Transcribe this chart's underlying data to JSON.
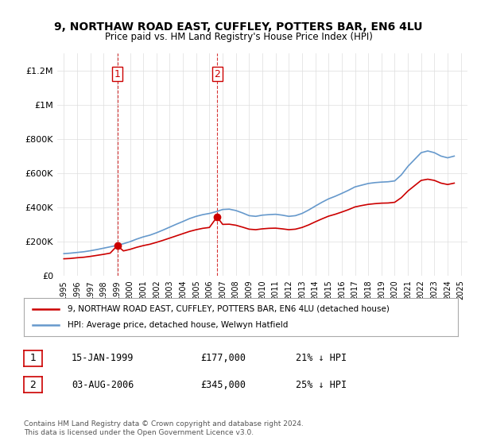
{
  "title1": "9, NORTHAW ROAD EAST, CUFFLEY, POTTERS BAR, EN6 4LU",
  "title2": "Price paid vs. HM Land Registry's House Price Index (HPI)",
  "ylabel": "",
  "background_color": "#ffffff",
  "grid_color": "#dddddd",
  "red_color": "#cc0000",
  "blue_color": "#6699cc",
  "sale1_date": 1999.04,
  "sale1_price": 177000,
  "sale1_label": "1",
  "sale2_date": 2006.58,
  "sale2_price": 345000,
  "sale2_label": "2",
  "legend_label_red": "9, NORTHAW ROAD EAST, CUFFLEY, POTTERS BAR, EN6 4LU (detached house)",
  "legend_label_blue": "HPI: Average price, detached house, Welwyn Hatfield",
  "annotation1_text": "1",
  "annotation2_text": "2",
  "table_row1": [
    "1",
    "15-JAN-1999",
    "£177,000",
    "21% ↓ HPI"
  ],
  "table_row2": [
    "2",
    "03-AUG-2006",
    "£345,000",
    "25% ↓ HPI"
  ],
  "footer": "Contains HM Land Registry data © Crown copyright and database right 2024.\nThis data is licensed under the Open Government Licence v3.0.",
  "hpi_years": [
    1995,
    1995.5,
    1996,
    1996.5,
    1997,
    1997.5,
    1998,
    1998.5,
    1999,
    1999.5,
    2000,
    2000.5,
    2001,
    2001.5,
    2002,
    2002.5,
    2003,
    2003.5,
    2004,
    2004.5,
    2005,
    2005.5,
    2006,
    2006.5,
    2007,
    2007.5,
    2008,
    2008.5,
    2009,
    2009.5,
    2010,
    2010.5,
    2011,
    2011.5,
    2012,
    2012.5,
    2013,
    2013.5,
    2014,
    2014.5,
    2015,
    2015.5,
    2016,
    2016.5,
    2017,
    2017.5,
    2018,
    2018.5,
    2019,
    2019.5,
    2020,
    2020.5,
    2021,
    2021.5,
    2022,
    2022.5,
    2023,
    2023.5,
    2024,
    2024.5
  ],
  "hpi_values": [
    130000,
    133000,
    137000,
    141000,
    147000,
    154000,
    162000,
    170000,
    178000,
    188000,
    200000,
    215000,
    228000,
    238000,
    252000,
    268000,
    285000,
    302000,
    318000,
    335000,
    348000,
    358000,
    365000,
    375000,
    388000,
    390000,
    382000,
    368000,
    352000,
    348000,
    355000,
    358000,
    360000,
    355000,
    348000,
    352000,
    365000,
    385000,
    408000,
    430000,
    450000,
    465000,
    482000,
    500000,
    520000,
    530000,
    540000,
    545000,
    548000,
    550000,
    555000,
    590000,
    640000,
    680000,
    720000,
    730000,
    720000,
    700000,
    690000,
    700000
  ],
  "red_years": [
    1995,
    1995.5,
    1996,
    1996.5,
    1997,
    1997.5,
    1998,
    1998.5,
    1999.04,
    1999.5,
    2000,
    2000.5,
    2001,
    2001.5,
    2002,
    2002.5,
    2003,
    2003.5,
    2004,
    2004.5,
    2005,
    2005.5,
    2006,
    2006.58,
    2007,
    2007.5,
    2008,
    2008.5,
    2009,
    2009.5,
    2010,
    2010.5,
    2011,
    2011.5,
    2012,
    2012.5,
    2013,
    2013.5,
    2014,
    2014.5,
    2015,
    2015.5,
    2016,
    2016.5,
    2017,
    2017.5,
    2018,
    2018.5,
    2019,
    2019.5,
    2020,
    2020.5,
    2021,
    2021.5,
    2022,
    2022.5,
    2023,
    2023.5,
    2024,
    2024.5
  ],
  "red_values": [
    100000,
    102000,
    106000,
    109000,
    114000,
    120000,
    126000,
    133000,
    177000,
    146000,
    155000,
    167000,
    177000,
    185000,
    196000,
    208000,
    221000,
    234000,
    247000,
    260000,
    270000,
    278000,
    283000,
    345000,
    301000,
    302000,
    296000,
    285000,
    273000,
    270000,
    275000,
    278000,
    279000,
    275000,
    270000,
    273000,
    283000,
    298000,
    316000,
    333000,
    349000,
    360000,
    373000,
    387000,
    403000,
    411000,
    418000,
    422000,
    425000,
    426000,
    430000,
    457000,
    496000,
    527000,
    558000,
    565000,
    558000,
    542000,
    534000,
    542000
  ],
  "xlim": [
    1994.5,
    2025.5
  ],
  "ylim": [
    0,
    1300000
  ],
  "xticks": [
    1995,
    1996,
    1997,
    1998,
    1999,
    2000,
    2001,
    2002,
    2003,
    2004,
    2005,
    2006,
    2007,
    2008,
    2009,
    2010,
    2011,
    2012,
    2013,
    2014,
    2015,
    2016,
    2017,
    2018,
    2019,
    2020,
    2021,
    2022,
    2023,
    2024,
    2025
  ],
  "yticks": [
    0,
    200000,
    400000,
    600000,
    800000,
    1000000,
    1200000
  ],
  "ytick_labels": [
    "£0",
    "£200K",
    "£400K",
    "£600K",
    "£800K",
    "£1M",
    "£1.2M"
  ]
}
